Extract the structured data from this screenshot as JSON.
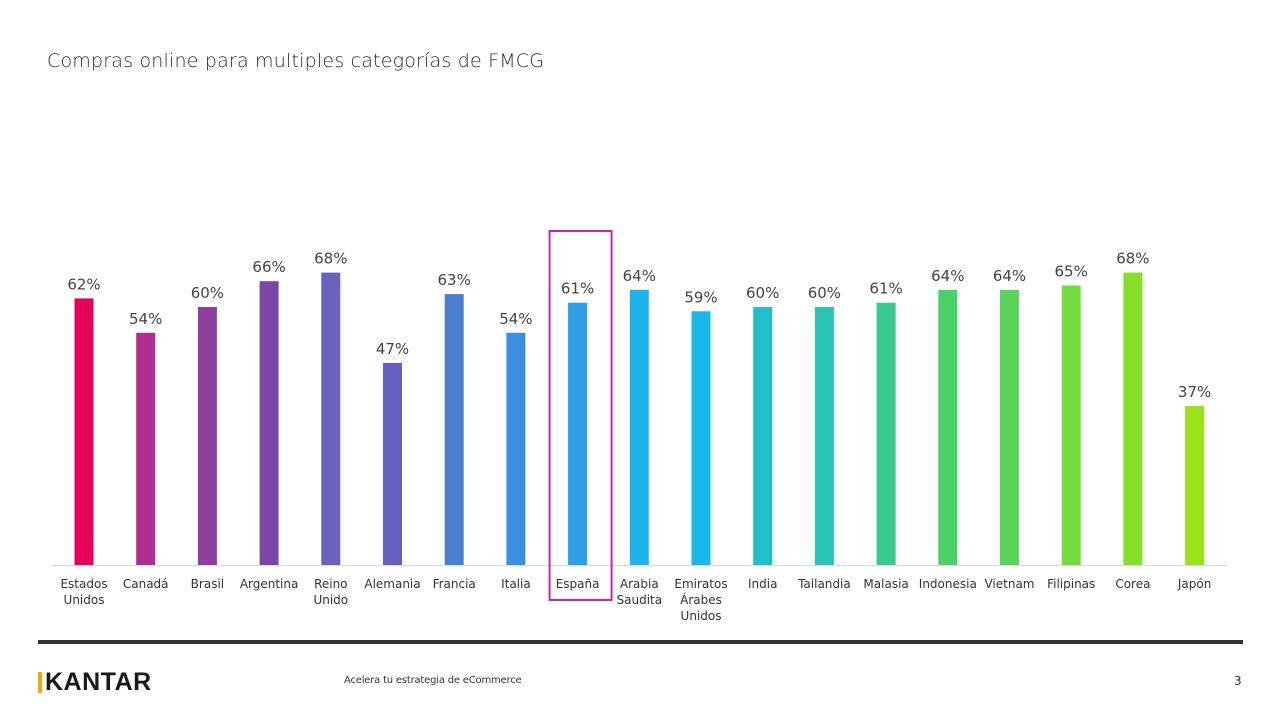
{
  "slide": {
    "title": "Compras online para multiples categorías de FMCG",
    "footer_text": "Acelera tu estrategia de eCommerce",
    "page_number": "3",
    "logo_text": "KANTAR",
    "logo_accent_color": "#f2a900"
  },
  "chart_data": {
    "type": "bar",
    "title": "Compras online para multiples categorías de FMCG",
    "xlabel": "",
    "ylabel": "",
    "ylim": [
      0,
      100
    ],
    "grid": false,
    "legend": "none",
    "value_suffix": "%",
    "categories": [
      "Estados Unidos",
      "Canadá",
      "Brasil",
      "Argentina",
      "Reino Unido",
      "Alemania",
      "Francia",
      "Italia",
      "España",
      "Arabia Saudita",
      "Emiratos Árabes Unidos",
      "India",
      "Tailandia",
      "Malasia",
      "Indonesia",
      "Vietnam",
      "Filipinas",
      "Corea",
      "Japón"
    ],
    "category_lines": [
      [
        "Estados",
        "Unidos"
      ],
      [
        "Canadá"
      ],
      [
        "Brasil"
      ],
      [
        "Argentina"
      ],
      [
        "Reino",
        "Unido"
      ],
      [
        "Alemania"
      ],
      [
        "Francia"
      ],
      [
        "Italia"
      ],
      [
        "España"
      ],
      [
        "Arabia",
        "Saudita"
      ],
      [
        "Emiratos",
        "Árabes",
        "Unidos"
      ],
      [
        "India"
      ],
      [
        "Tailandia"
      ],
      [
        "Malasia"
      ],
      [
        "Indonesia"
      ],
      [
        "Vietnam"
      ],
      [
        "Filipinas"
      ],
      [
        "Corea"
      ],
      [
        "Japón"
      ]
    ],
    "values": [
      62,
      54,
      60,
      66,
      68,
      47,
      63,
      54,
      61,
      64,
      59,
      60,
      60,
      61,
      64,
      64,
      65,
      68,
      37
    ],
    "labels": [
      "62%",
      "54%",
      "60%",
      "66%",
      "68%",
      "47%",
      "63%",
      "54%",
      "61%",
      "64%",
      "59%",
      "60%",
      "60%",
      "61%",
      "64%",
      "64%",
      "65%",
      "68%",
      "37%"
    ],
    "colors": [
      "#e6005c",
      "#b02e8f",
      "#8e3fa0",
      "#7c46a8",
      "#6a63bd",
      "#6560c0",
      "#4a7ed0",
      "#3b8ee0",
      "#2c9fe6",
      "#1bb3ee",
      "#1ab8e6",
      "#22bfcb",
      "#2bc5b8",
      "#3ac98f",
      "#4bd06a",
      "#5ad45a",
      "#76dc3e",
      "#86e02a",
      "#9be21a"
    ],
    "highlight": {
      "category": "España",
      "color": "#cc22b4"
    },
    "axis_color": "#d9d9d9"
  }
}
